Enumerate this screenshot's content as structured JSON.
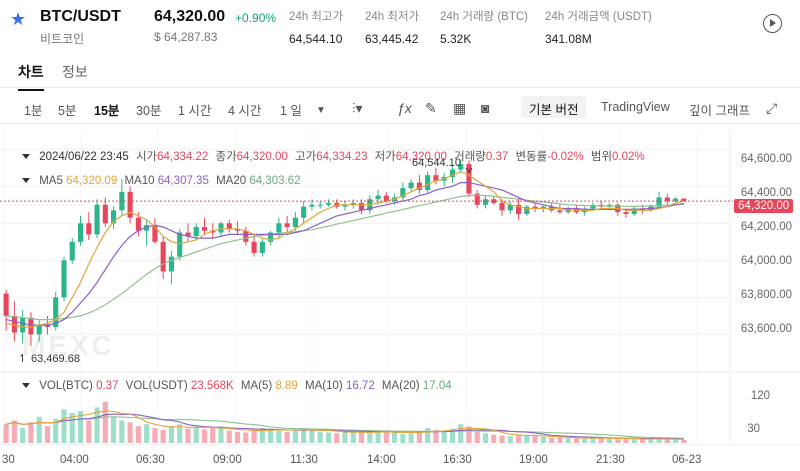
{
  "header": {
    "pair": "BTC/USDT",
    "pair_sub": "비트코인",
    "price": "64,320.00",
    "change": "+0.90%",
    "price_usd": "$ 64,287.83",
    "stats": [
      {
        "label": "24h 최고가",
        "value": "64,544.10"
      },
      {
        "label": "24h 최저가",
        "value": "63,445.42"
      },
      {
        "label": "24h 거래량 (BTC)",
        "value": "5.32K"
      },
      {
        "label": "24h 거래금액 (USDT)",
        "value": "341.08M"
      }
    ]
  },
  "tabs": {
    "chart": "차트",
    "info": "정보"
  },
  "toolbar": {
    "timeframes": [
      "1분",
      "5분",
      "15분",
      "30분",
      "1 시간",
      "4 시간",
      "1 일"
    ],
    "active_timeframe": "15분",
    "basic_version": "기본 버전",
    "tradingview": "TradingView",
    "depth_chart": "깊이 그래프"
  },
  "ohlc": {
    "datetime": "2024/06/22 23:45",
    "open_label": "시가",
    "open": "64,334.22",
    "close_label": "종가",
    "close": "64,320.00",
    "high_label": "고가",
    "high": "64,334.23",
    "low_label": "저가",
    "low": "64,320.00",
    "volume_label": "거래량",
    "volume": "0.37",
    "change_label": "변동률",
    "change": "-0.02%",
    "range_label": "범위",
    "range": "0.02%"
  },
  "ma": {
    "ma5_label": "MA5",
    "ma5": "64,320.09",
    "ma10_label": "MA10",
    "ma10": "64,307.35",
    "ma20_label": "MA20",
    "ma20": "64,303.62"
  },
  "vol": {
    "vol_btc_label": "VOL(BTC)",
    "vol_btc": "0.37",
    "vol_usdt_label": "VOL(USDT)",
    "vol_usdt": "23.568K",
    "ma5_label": "MA(5)",
    "ma5": "8.89",
    "ma10_label": "MA(10)",
    "ma10": "16.72",
    "ma20_label": "MA(20)",
    "ma20": "17.04"
  },
  "axis": {
    "price_ticks": [
      "64,600.00",
      "64,400.00",
      "64,200.00",
      "64,000.00",
      "63,800.00",
      "63,600.00"
    ],
    "volume_ticks": [
      "120",
      "30"
    ],
    "time_ticks": [
      "30",
      "04:00",
      "06:30",
      "09:00",
      "11:30",
      "14:00",
      "16:30",
      "19:00",
      "21:30",
      "06-23"
    ]
  },
  "current_price_tag": "64,320.00",
  "high_marker": "64,544.10",
  "low_marker": "63,469.68",
  "watermark": "MEXC",
  "colors": {
    "up": "#2bb58a",
    "down": "#e8465b",
    "ma5": "#e4a53a",
    "ma10": "#8a5fc9",
    "ma20": "#8fc08f",
    "accent": "#3b6cf6"
  },
  "chart_data": {
    "type": "candlestick",
    "ylim": [
      63440,
      64650
    ],
    "candles": [
      [
        63820,
        63840,
        63620,
        63700
      ],
      [
        63700,
        63780,
        63560,
        63610
      ],
      [
        63610,
        63730,
        63550,
        63690
      ],
      [
        63690,
        63720,
        63540,
        63600
      ],
      [
        63600,
        63680,
        63560,
        63650
      ],
      [
        63650,
        63700,
        63600,
        63640
      ],
      [
        63640,
        63830,
        63620,
        63800
      ],
      [
        63800,
        64020,
        63780,
        64000
      ],
      [
        64000,
        64120,
        63980,
        64100
      ],
      [
        64100,
        64240,
        64080,
        64200
      ],
      [
        64200,
        64260,
        64110,
        64140
      ],
      [
        64140,
        64330,
        64120,
        64300
      ],
      [
        64300,
        64340,
        64180,
        64200
      ],
      [
        64200,
        64290,
        64170,
        64270
      ],
      [
        64270,
        64440,
        64240,
        64370
      ],
      [
        64370,
        64400,
        64200,
        64230
      ],
      [
        64230,
        64260,
        64130,
        64160
      ],
      [
        64160,
        64220,
        64080,
        64190
      ],
      [
        64190,
        64230,
        64090,
        64100
      ],
      [
        64100,
        64130,
        63900,
        63940
      ],
      [
        63940,
        64050,
        63870,
        64020
      ],
      [
        64020,
        64170,
        64000,
        64150
      ],
      [
        64150,
        64200,
        64100,
        64130
      ],
      [
        64130,
        64200,
        64110,
        64180
      ],
      [
        64180,
        64230,
        64140,
        64160
      ],
      [
        64160,
        64200,
        64120,
        64150
      ],
      [
        64150,
        64210,
        64130,
        64200
      ],
      [
        64200,
        64220,
        64150,
        64170
      ],
      [
        64170,
        64210,
        64140,
        64160
      ],
      [
        64160,
        64180,
        64080,
        64100
      ],
      [
        64100,
        64140,
        64020,
        64040
      ],
      [
        64040,
        64120,
        64020,
        64100
      ],
      [
        64100,
        64160,
        64080,
        64150
      ],
      [
        64150,
        64230,
        64120,
        64200
      ],
      [
        64200,
        64240,
        64150,
        64180
      ],
      [
        64180,
        64260,
        64160,
        64230
      ],
      [
        64230,
        64320,
        64200,
        64290
      ],
      [
        64290,
        64330,
        64270,
        64300
      ],
      [
        64300,
        64320,
        64280,
        64300
      ],
      [
        64300,
        64330,
        64290,
        64310
      ],
      [
        64310,
        64330,
        64280,
        64290
      ],
      [
        64290,
        64320,
        64270,
        64300
      ],
      [
        64300,
        64330,
        64280,
        64310
      ],
      [
        64310,
        64330,
        64250,
        64270
      ],
      [
        64270,
        64350,
        64250,
        64330
      ],
      [
        64330,
        64380,
        64300,
        64350
      ],
      [
        64350,
        64370,
        64310,
        64320
      ],
      [
        64320,
        64360,
        64300,
        64340
      ],
      [
        64340,
        64420,
        64320,
        64390
      ],
      [
        64390,
        64440,
        64370,
        64420
      ],
      [
        64420,
        64460,
        64360,
        64380
      ],
      [
        64380,
        64480,
        64360,
        64460
      ],
      [
        64460,
        64500,
        64410,
        64430
      ],
      [
        64430,
        64470,
        64400,
        64450
      ],
      [
        64450,
        64510,
        64420,
        64490
      ],
      [
        64490,
        64544,
        64470,
        64520
      ],
      [
        64520,
        64540,
        64340,
        64360
      ],
      [
        64360,
        64380,
        64280,
        64300
      ],
      [
        64300,
        64350,
        64280,
        64330
      ],
      [
        64330,
        64350,
        64300,
        64310
      ],
      [
        64310,
        64330,
        64240,
        64270
      ],
      [
        64270,
        64320,
        64250,
        64300
      ],
      [
        64300,
        64340,
        64220,
        64250
      ],
      [
        64250,
        64300,
        64240,
        64290
      ],
      [
        64290,
        64310,
        64260,
        64280
      ],
      [
        64280,
        64300,
        64260,
        64290
      ],
      [
        64290,
        64310,
        64260,
        64270
      ],
      [
        64270,
        64300,
        64250,
        64260
      ],
      [
        64260,
        64290,
        64250,
        64280
      ],
      [
        64280,
        64300,
        64250,
        64260
      ],
      [
        64260,
        64290,
        64240,
        64280
      ],
      [
        64280,
        64310,
        64270,
        64300
      ],
      [
        64300,
        64320,
        64280,
        64290
      ],
      [
        64290,
        64310,
        64270,
        64300
      ],
      [
        64300,
        64310,
        64240,
        64260
      ],
      [
        64260,
        64280,
        64230,
        64250
      ],
      [
        64250,
        64290,
        64240,
        64280
      ],
      [
        64280,
        64300,
        64250,
        64270
      ],
      [
        64270,
        64300,
        64260,
        64290
      ],
      [
        64290,
        64370,
        64280,
        64340
      ],
      [
        64340,
        64360,
        64300,
        64320
      ],
      [
        64320,
        64340,
        64310,
        64334
      ],
      [
        64334,
        64334,
        64320,
        64320
      ]
    ],
    "volumes": [
      50,
      60,
      40,
      55,
      70,
      45,
      65,
      90,
      80,
      85,
      60,
      95,
      110,
      70,
      60,
      55,
      45,
      50,
      40,
      35,
      45,
      50,
      38,
      42,
      36,
      40,
      44,
      33,
      30,
      28,
      35,
      40,
      38,
      32,
      30,
      36,
      40,
      34,
      30,
      28,
      26,
      30,
      32,
      28,
      26,
      30,
      34,
      28,
      24,
      26,
      30,
      40,
      35,
      30,
      38,
      50,
      44,
      30,
      26,
      22,
      20,
      18,
      22,
      20,
      18,
      16,
      14,
      15,
      13,
      12,
      11,
      14,
      15,
      12,
      10,
      12,
      11,
      10,
      9,
      13,
      10,
      9,
      8
    ],
    "ma5": [
      63660,
      63650,
      63640,
      63640,
      63650,
      63660,
      63680,
      63720,
      63800,
      63880,
      63980,
      64070,
      64150,
      64210,
      64240,
      64260,
      64240,
      64220,
      64180,
      64130,
      64100,
      64090,
      64100,
      64110,
      64140,
      64160,
      64170,
      64170,
      64170,
      64160,
      64140,
      64120,
      64110,
      64120,
      64150,
      64170,
      64200,
      64230,
      64260,
      64280,
      64300,
      64300,
      64300,
      64300,
      64300,
      64310,
      64320,
      64330,
      64350,
      64370,
      64390,
      64410,
      64430,
      64440,
      64460,
      64480,
      64460,
      64430,
      64400,
      64370,
      64320,
      64300,
      64290,
      64280,
      64280,
      64280,
      64280,
      64280,
      64270,
      64270,
      64270,
      64270,
      64280,
      64280,
      64280,
      64270,
      64270,
      64270,
      64270,
      64280,
      64290,
      64310,
      64320
    ],
    "ma10": [
      63680,
      63670,
      63660,
      63650,
      63650,
      63650,
      63660,
      63680,
      63720,
      63770,
      63820,
      63880,
      63950,
      64020,
      64080,
      64130,
      64160,
      64180,
      64190,
      64180,
      64160,
      64140,
      64130,
      64120,
      64120,
      64120,
      64130,
      64140,
      64140,
      64140,
      64140,
      64140,
      64140,
      64140,
      64140,
      64150,
      64160,
      64180,
      64200,
      64220,
      64240,
      64250,
      64260,
      64270,
      64280,
      64290,
      64300,
      64310,
      64320,
      64330,
      64350,
      64360,
      64380,
      64390,
      64400,
      64420,
      64420,
      64410,
      64400,
      64390,
      64380,
      64360,
      64340,
      64320,
      64310,
      64300,
      64290,
      64280,
      64280,
      64280,
      64275,
      64275,
      64275,
      64275,
      64275,
      64275,
      64275,
      64278,
      64280,
      64285,
      64290,
      64300,
      64307
    ],
    "ma20": [
      63700,
      63695,
      63690,
      63685,
      63680,
      63680,
      63682,
      63686,
      63692,
      63700,
      63715,
      63735,
      63760,
      63790,
      63820,
      63855,
      63890,
      63925,
      63955,
      63980,
      64000,
      64015,
      64030,
      64045,
      64060,
      64075,
      64090,
      64100,
      64110,
      64120,
      64128,
      64135,
      64140,
      64145,
      64150,
      64155,
      64160,
      64165,
      64175,
      64185,
      64195,
      64205,
      64215,
      64225,
      64235,
      64245,
      64255,
      64265,
      64275,
      64285,
      64295,
      64305,
      64315,
      64325,
      64335,
      64345,
      64350,
      64352,
      64350,
      64346,
      64340,
      64335,
      64330,
      64325,
      64320,
      64315,
      64310,
      64305,
      64300,
      64298,
      64296,
      64295,
      64294,
      64293,
      64292,
      64292,
      64292,
      64293,
      64294,
      64296,
      64298,
      64301,
      64303
    ]
  }
}
